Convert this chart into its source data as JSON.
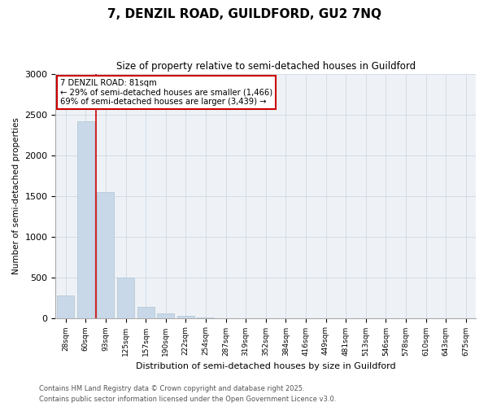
{
  "title_line1": "7, DENZIL ROAD, GUILDFORD, GU2 7NQ",
  "title_line2": "Size of property relative to semi-detached houses in Guildford",
  "xlabel": "Distribution of semi-detached houses by size in Guildford",
  "ylabel": "Number of semi-detached properties",
  "categories": [
    "28sqm",
    "60sqm",
    "93sqm",
    "125sqm",
    "157sqm",
    "190sqm",
    "222sqm",
    "254sqm",
    "287sqm",
    "319sqm",
    "352sqm",
    "384sqm",
    "416sqm",
    "449sqm",
    "481sqm",
    "513sqm",
    "546sqm",
    "578sqm",
    "610sqm",
    "643sqm",
    "675sqm"
  ],
  "values": [
    280,
    2420,
    1550,
    500,
    140,
    60,
    30,
    5,
    0,
    0,
    0,
    0,
    0,
    0,
    0,
    0,
    0,
    0,
    0,
    0,
    0
  ],
  "bar_color": "#c8d8e8",
  "bar_edge_color": "#b0c4d4",
  "annotation_line1": "7 DENZIL ROAD: 81sqm",
  "annotation_line2": "← 29% of semi-detached houses are smaller (1,466)",
  "annotation_line3": "69% of semi-detached houses are larger (3,439) →",
  "annotation_box_facecolor": "#ffffff",
  "annotation_box_edgecolor": "#cc0000",
  "vline_color": "#cc0000",
  "grid_color": "#d0d8e4",
  "background_color": "#eef2f6",
  "fig_background_color": "#ffffff",
  "ylim": [
    0,
    3000
  ],
  "yticks": [
    0,
    500,
    1000,
    1500,
    2000,
    2500,
    3000
  ],
  "footer_line1": "Contains HM Land Registry data © Crown copyright and database right 2025.",
  "footer_line2": "Contains public sector information licensed under the Open Government Licence v3.0."
}
